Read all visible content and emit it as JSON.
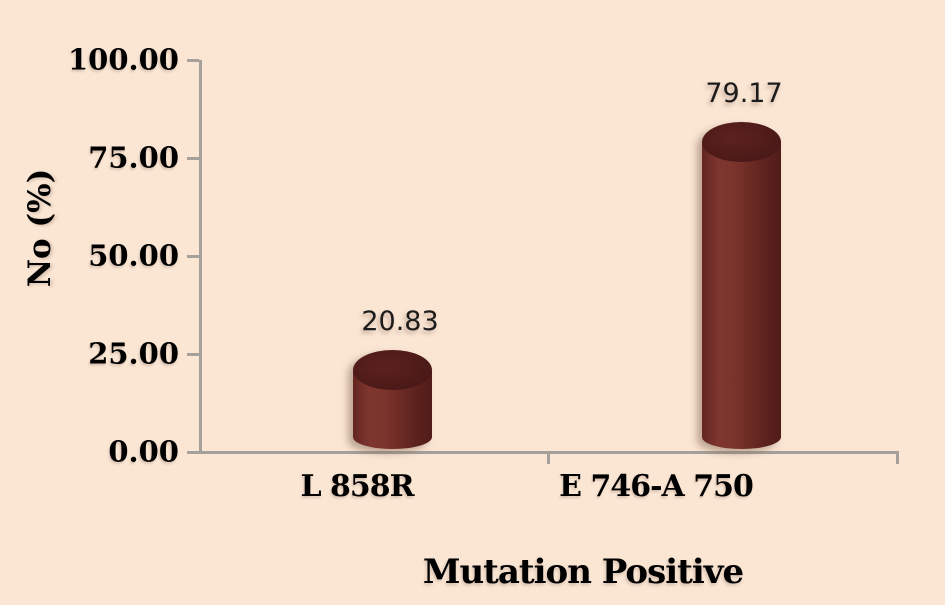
{
  "chart_data": {
    "type": "bar",
    "subtype": "3d-cylinder",
    "categories": [
      "L 858R",
      "E 746-A 750"
    ],
    "values": [
      20.83,
      79.17
    ],
    "value_labels": [
      "20.83",
      "79.17"
    ],
    "xlabel": "Mutation Positive",
    "ylabel": "No (%)",
    "ylim": [
      0,
      100
    ],
    "ytick_labels": [
      "0.00",
      "25.00",
      "50.00",
      "75.00",
      "100.00"
    ],
    "grid": false,
    "legend_position": "none",
    "colors": {
      "background": "#fbe6d4",
      "bar_body": "#6e2b27",
      "bar_top": "#4c1a18",
      "axis": "#a5a09a",
      "text": "#000000"
    }
  }
}
